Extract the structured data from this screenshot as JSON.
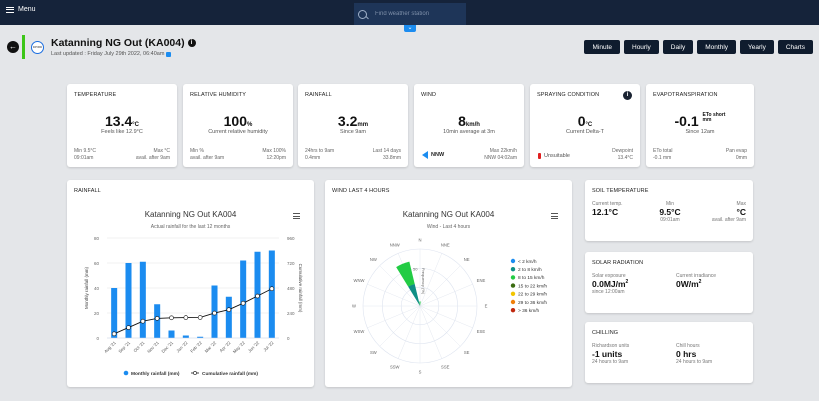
{
  "topbar": {
    "menu_label": "Menu",
    "search_placeholder": "Find weather station"
  },
  "header": {
    "station_title": "Katanning NG Out (KA004)",
    "last_updated": "Last updated : Friday July 29th 2022, 06:40am",
    "logo_text": "DPIRD",
    "view_buttons": [
      "Minute",
      "Hourly",
      "Daily",
      "Monthly",
      "Yearly",
      "Charts"
    ]
  },
  "cards": {
    "temperature": {
      "title": "TEMPERATURE",
      "value": "13.4",
      "unit": "°C",
      "sub": "Feels like 12.9°C",
      "bl1": "Min 9.5°C",
      "bl2": "09:01am",
      "br1": "Max °C",
      "br2": "avail. after 9am"
    },
    "humidity": {
      "title": "RELATIVE HUMIDITY",
      "value": "100",
      "unit": "%",
      "sub": "Current relative humidity",
      "bl1": "Min %",
      "bl2": "avail. after 9am",
      "br1": "Max 100%",
      "br2": "12:20pm"
    },
    "rainfall": {
      "title": "RAINFALL",
      "value": "3.2",
      "unit": "mm",
      "sub": "Since 9am",
      "bl1": "24hrs to 9am",
      "bl2": "0.4mm",
      "br1": "Last 14 days",
      "br2": "33.8mm"
    },
    "wind": {
      "title": "WIND",
      "value": "8",
      "unit": "km/h",
      "sub": "10min average at 3m",
      "direction": "NNW",
      "br1": "Max 22km/h",
      "br2": "NNW 04:02am"
    },
    "spraying": {
      "title": "SPRAYING CONDITION",
      "value": "0",
      "unit": "°C",
      "sub": "Current Delta-T",
      "status": "Unsuitable",
      "status_color": "#e02020",
      "br1": "Dewpoint",
      "br2": "13.4°C"
    },
    "evapo": {
      "title": "EVAPOTRANSPIRATION",
      "value": "-0.1",
      "unit_line1": "ETo short",
      "unit_line2": "mm",
      "sub": "Since 12am",
      "bl1": "ETo total",
      "bl2": "-0.1 mm",
      "br1": "Pan evap",
      "br2": "0mm"
    }
  },
  "rainfall_panel": {
    "title": "RAINFALL",
    "chart_data": {
      "type": "bar",
      "title": "Katanning NG Out KA004",
      "subtitle": "Actual rainfall for the last 12 months",
      "categories": [
        "Aug '21",
        "Sep '21",
        "Oct '21",
        "Nov '21",
        "Dec '21",
        "Jan '22",
        "Feb '22",
        "Mar '22",
        "Apr '22",
        "May '22",
        "Jun '22",
        "Jul '22"
      ],
      "series": [
        {
          "name": "Monthly rainfall (mm)",
          "type": "bar",
          "axis": "left",
          "color": "#1b8cf0",
          "values": [
            40,
            60,
            61,
            27,
            6,
            2,
            1,
            42,
            33,
            62,
            69,
            70
          ]
        },
        {
          "name": "Cumulative rainfall (mm)",
          "type": "line",
          "axis": "right",
          "color": "#111111",
          "values": [
            40,
            100,
            161,
            188,
            194,
            196,
            197,
            239,
            272,
            334,
            403,
            473
          ]
        }
      ],
      "ylabel": "Monthly rainfall (mm)",
      "y2label": "Cumulative rainfall (mm)",
      "ylim": [
        0,
        80
      ],
      "y2lim": [
        0,
        960
      ],
      "yticks": [
        "0",
        "20",
        "40",
        "60",
        "80"
      ],
      "y2ticks": [
        "0",
        "240",
        "480",
        "720",
        "960"
      ],
      "legend_position": "bottom"
    }
  },
  "wind_panel": {
    "title": "WIND LAST 4 HOURS",
    "chart_data": {
      "type": "windrose",
      "title": "Katanning NG Out KA004",
      "subtitle": "Wind - Last 4 hours",
      "directions": [
        "N",
        "NNE",
        "NE",
        "ENE",
        "E",
        "ESE",
        "SE",
        "SSE",
        "S",
        "SSW",
        "SW",
        "WSW",
        "W",
        "WNW",
        "NW",
        "NNW"
      ],
      "radial_label": "Frequency (%)",
      "radial_ticks": [
        "50"
      ],
      "legend": [
        {
          "label": "< 2 km/h",
          "color": "#1b8cf0"
        },
        {
          "label": "2 to 8 km/h",
          "color": "#0f8f86"
        },
        {
          "label": "8 to 15 km/h",
          "color": "#22cc44"
        },
        {
          "label": "15 to 22 km/h",
          "color": "#3a6b10"
        },
        {
          "label": "22 to 29 km/h",
          "color": "#f2c500"
        },
        {
          "label": "29 to 36 km/h",
          "color": "#f07f0a"
        },
        {
          "label": "> 36 km/h",
          "color": "#c0280e"
        }
      ],
      "stacks": [
        {
          "direction": "NNW",
          "values": [
            0,
            40,
            40,
            0,
            0,
            0,
            0
          ]
        },
        {
          "direction": "N",
          "values": [
            0,
            0,
            8,
            0,
            0,
            0,
            0
          ]
        }
      ]
    }
  },
  "soil": {
    "title": "SOIL TEMPERATURE",
    "c1_label": "Current temp.",
    "c1_value": "12.1°C",
    "c2_label": "Min",
    "c2_value": "9.5°C",
    "c2_sub": "09:01am",
    "c3_label": "Max",
    "c3_value": "°C",
    "c3_sub": "avail. after 9am"
  },
  "solar": {
    "title": "SOLAR RADIATION",
    "c1_label": "Solar exposure",
    "c1_value": "0.0MJ/m",
    "c1_sup": "2",
    "c1_sub": "since 12:00am",
    "c2_label": "Current irradiance",
    "c2_value": "0W/m",
    "c2_sup": "2"
  },
  "chilling": {
    "title": "CHILLING",
    "c1_label": "Richardson units",
    "c1_value": "-1 units",
    "c1_sub": "24 hours to 9am",
    "c2_label": "Chill hours",
    "c2_value": "0 hrs",
    "c2_sub": "24 hours to 9am"
  }
}
